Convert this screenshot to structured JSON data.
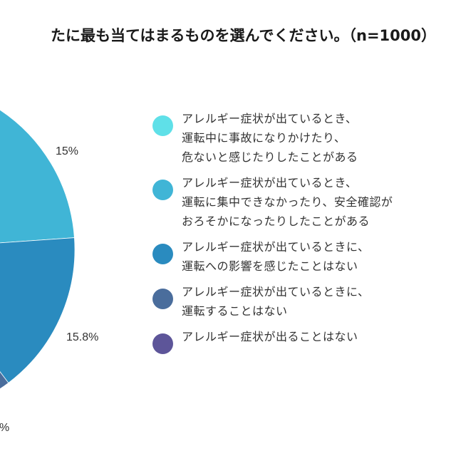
{
  "title": "たに最も当てはまるものを選んでください。（n=1000）",
  "chart_data": {
    "type": "pie",
    "title": "たに最も当てはまるものを選んでください。（n=1000）",
    "categories": [
      "アレルギー症状が出ているとき、\n運転中に事故になりかけたり、\n危ないと感じたりしたことがある",
      "アレルギー症状が出ているとき、\n運転に集中できなかったり、安全確認が\nおろそかになったりしたことがある",
      "アレルギー症状が出ているときに、\n運転への影響を感じたことはない",
      "アレルギー症状が出ているときに、\n運転することはない",
      "アレルギー症状が出ることはない"
    ],
    "values": [
      null,
      15,
      15.8,
      null,
      null
    ],
    "data_labels": [
      "",
      "15%",
      "15.8%",
      "%",
      ""
    ],
    "colors": [
      "#5fe0e8",
      "#40b5d6",
      "#2a8bbf",
      "#4a6d9c",
      "#5d5599"
    ],
    "legend_position": "right"
  }
}
